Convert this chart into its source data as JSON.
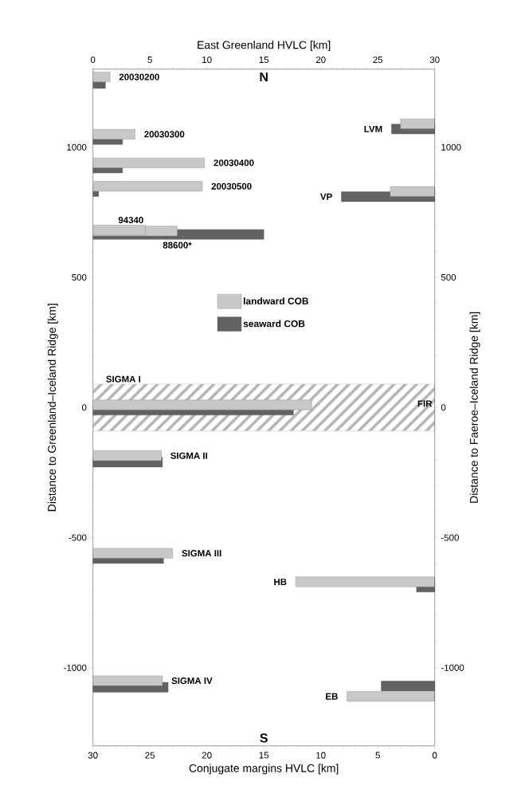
{
  "chart_data": {
    "type": "bar",
    "orientation": "horizontal",
    "xlabel": "Conjugate margins HVLC [km]",
    "x2label": "East Greenland HVLC [km]",
    "ylabel": "Distance to Greenland–Iceland Ridge [km]",
    "y2label": "Distance to Faeroe–Iceland Ridge [km]",
    "xlim": [
      30,
      0
    ],
    "xticks": [
      0,
      5,
      10,
      15,
      20,
      25,
      30
    ],
    "x2lim": [
      0,
      30
    ],
    "x2ticks": [
      0,
      5,
      10,
      15,
      20,
      25,
      30
    ],
    "ylim": [
      -1300,
      1300
    ],
    "yticks": [
      -1000,
      -500,
      0,
      500,
      1000
    ],
    "y2lim": [
      -1300,
      1300
    ],
    "y2ticks": [
      -1000,
      -500,
      0,
      500,
      1000
    ],
    "legend": "center",
    "series": [
      {
        "name": "landward COB",
        "color": "#c8c8c8",
        "axis": "x2",
        "x": [
          1270,
          1050,
          940,
          850,
          682,
          678,
          10,
          -185,
          -560,
          -1050
        ],
        "values": [
          1.5,
          3.7,
          9.8,
          9.6,
          4.6,
          7.4,
          19.2,
          6.0,
          7.0,
          6.1
        ]
      },
      {
        "name": "seaward COB",
        "color": "#626262",
        "axis": "x2",
        "x": [
          1245,
          1030,
          920,
          830,
          665,
          -10,
          -210,
          -580,
          -1075
        ],
        "values": [
          1.1,
          2.6,
          2.6,
          0.5,
          15,
          17.6,
          6.1,
          6.2,
          6.6
        ]
      },
      {
        "color": "#c8c8c8",
        "x": [
          1090,
          830,
          -670,
          -1110
        ],
        "values": [
          3.0,
          3.9,
          12.2,
          7.7
        ]
      },
      {
        "color": "#626262",
        "x": [
          1070,
          810,
          -690,
          -1070
        ],
        "values": [
          3.8,
          8.2,
          1.6,
          4.7
        ]
      }
    ],
    "bands": [
      {
        "axis": "y",
        "from": -90,
        "to": 90,
        "label": "FIR",
        "color": "#b4b4b4"
      }
    ],
    "annotations": [
      "N",
      {
        "text": "20030200",
        "x": 28.5,
        "y": 1270
      },
      {
        "text": "20030300",
        "x": 26.3,
        "y": 1050
      },
      {
        "text": "20030400",
        "x": 20.2,
        "y": 940
      },
      {
        "text": "20030500",
        "x": 20.4,
        "y": 850
      },
      {
        "text": "94340",
        "x": 25.4,
        "y": 682
      },
      {
        "text": "88600*",
        "x": 22.6,
        "y": 678
      },
      {
        "text": "SIGMA I",
        "x": 30,
        "y": 90
      },
      {
        "text": "SIGMA II",
        "x": 24.0,
        "y": -185
      },
      {
        "text": "SIGMA III",
        "x": 23.0,
        "y": -560
      },
      {
        "text": "SIGMA IV",
        "x": 23.9,
        "y": -1050
      },
      {
        "text": "LVM",
        "x": 3.8,
        "y": 1070
      },
      {
        "text": "VP",
        "x": 8.2,
        "y": 810
      },
      {
        "text": "HB",
        "x": 12.2,
        "y": -670
      },
      {
        "text": "EB",
        "x": 7.7,
        "y": -1110
      },
      "S"
    ]
  }
}
